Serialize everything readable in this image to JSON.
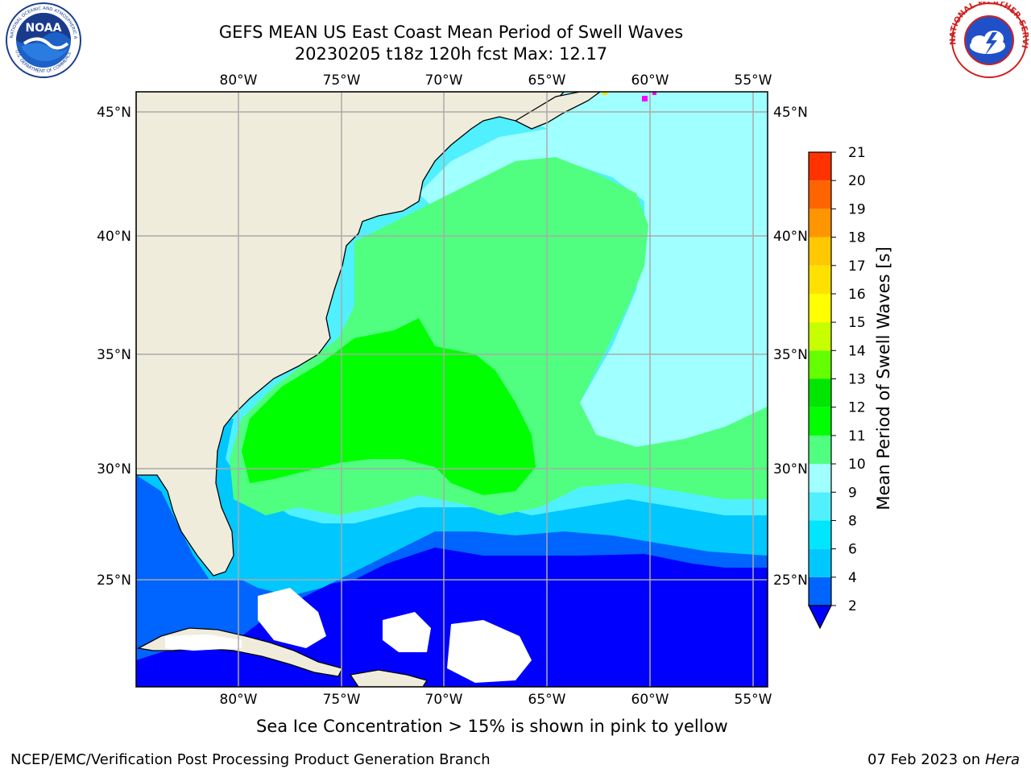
{
  "header": {
    "title_line1": "GEFS MEAN US East Coast Mean Period of Swell Waves",
    "title_line2": "20230205 t18z 120h fcst   Max: 12.17"
  },
  "logos": {
    "left": {
      "name": "NOAA logo",
      "text": "NOAA",
      "ring_text": "NATIONAL OCEANIC AND ATMOSPHERIC ADMINISTRATION · U.S. DEPARTMENT OF COMMERCE"
    },
    "right": {
      "name": "National Weather Service logo",
      "ring_text": "NATIONAL WEATHER SERVICE"
    }
  },
  "map": {
    "lon_ticks": [
      "80°W",
      "75°W",
      "70°W",
      "65°W",
      "60°W",
      "55°W"
    ],
    "lat_ticks": [
      "45°N",
      "40°N",
      "35°N",
      "30°N",
      "25°N"
    ],
    "extent": {
      "lon_min": -85,
      "lon_max": -54.3,
      "lat_min": 20.5,
      "lat_max": 46
    },
    "land_color": "#efecdc",
    "grid_color": "#aaaaaa"
  },
  "colorbar": {
    "label": "Mean Period of Swell Waves [s]",
    "ticks": [
      "2",
      "4",
      "6",
      "8",
      "9",
      "10",
      "11",
      "12",
      "13",
      "14",
      "15",
      "16",
      "17",
      "18",
      "19",
      "20",
      "21"
    ],
    "colors": [
      "#0000ff",
      "#0064ff",
      "#00c8ff",
      "#00e6ff",
      "#50f0ff",
      "#a0ffff",
      "#50ff80",
      "#00ff00",
      "#00e600",
      "#64ff00",
      "#c8ff00",
      "#ffff00",
      "#ffe100",
      "#ffc800",
      "#ff9600",
      "#ff6400",
      "#ff3200",
      "#ff0000"
    ]
  },
  "footer": {
    "ice_note": "Sea Ice Concentration > 15% is shown in pink to yellow",
    "credit": "NCEP/EMC/Verification Post Processing Product Generation Branch",
    "date": "07 Feb 2023 on",
    "machine": "Hera"
  }
}
